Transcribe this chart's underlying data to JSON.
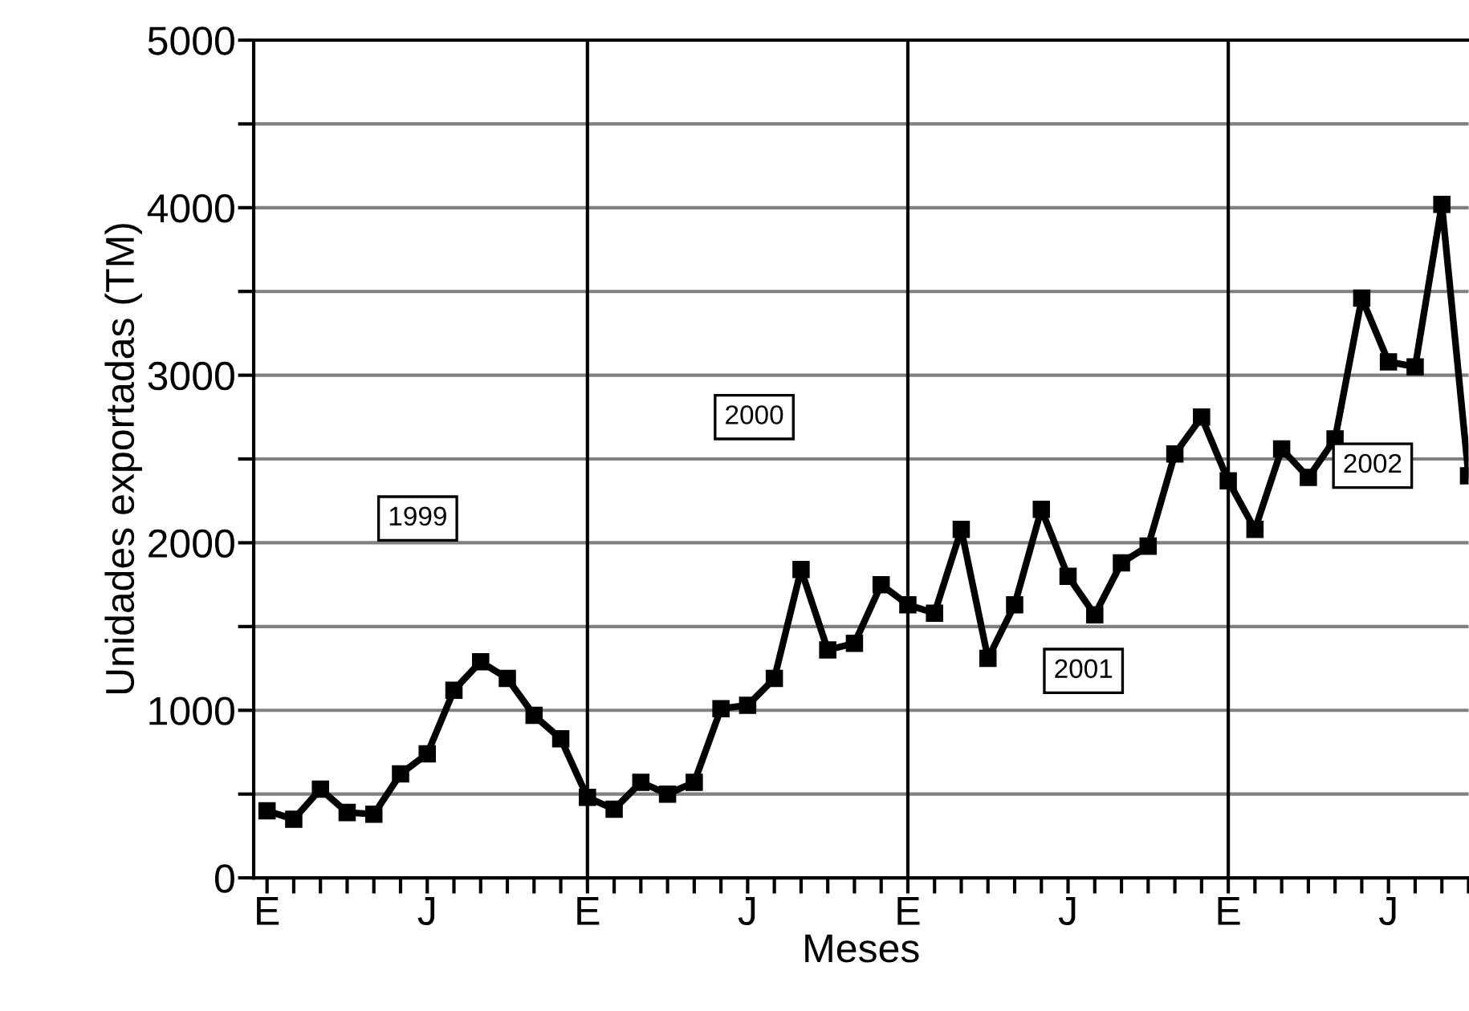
{
  "chart_data": {
    "type": "line",
    "xlabel": "Meses",
    "ylabel": "Unidades exportadas (TM)",
    "categories": [
      "E",
      null,
      null,
      null,
      null,
      null,
      "J",
      null,
      null,
      null,
      null,
      null,
      "E",
      null,
      null,
      null,
      null,
      null,
      "J",
      null,
      null,
      null,
      null,
      null,
      "E",
      null,
      null,
      null,
      null,
      null,
      "J",
      null,
      null,
      null,
      null,
      null,
      "E",
      null,
      null,
      null,
      null,
      null,
      "J",
      null,
      null,
      null
    ],
    "series": [
      {
        "color": "#000000",
        "values": [
          400,
          350,
          530,
          390,
          380,
          620,
          740,
          1120,
          1290,
          1190,
          970,
          830,
          480,
          410,
          570,
          500,
          570,
          1010,
          1030,
          1190,
          1840,
          1360,
          1400,
          1750,
          1630,
          1580,
          2080,
          1310,
          1630,
          2200,
          1800,
          1570,
          1880,
          1980,
          2530,
          2750,
          2370,
          2080,
          2560,
          2390,
          2620,
          3460,
          3080,
          3050,
          4020,
          2400
        ]
      }
    ],
    "ylim": [
      0,
      5000
    ],
    "yticks": [
      0,
      {
        "value": 500,
        "label": null
      },
      1000,
      {
        "value": 1500,
        "label": null
      },
      2000,
      {
        "value": 2500,
        "label": null
      },
      3000,
      {
        "value": 3500,
        "label": null
      },
      4000,
      {
        "value": 4500,
        "label": null
      },
      5000
    ],
    "grid": true,
    "marker": "square",
    "line_style": "solid",
    "legend": false,
    "annotations": [
      "1999",
      "2000",
      "2001",
      "2002"
    ]
  }
}
